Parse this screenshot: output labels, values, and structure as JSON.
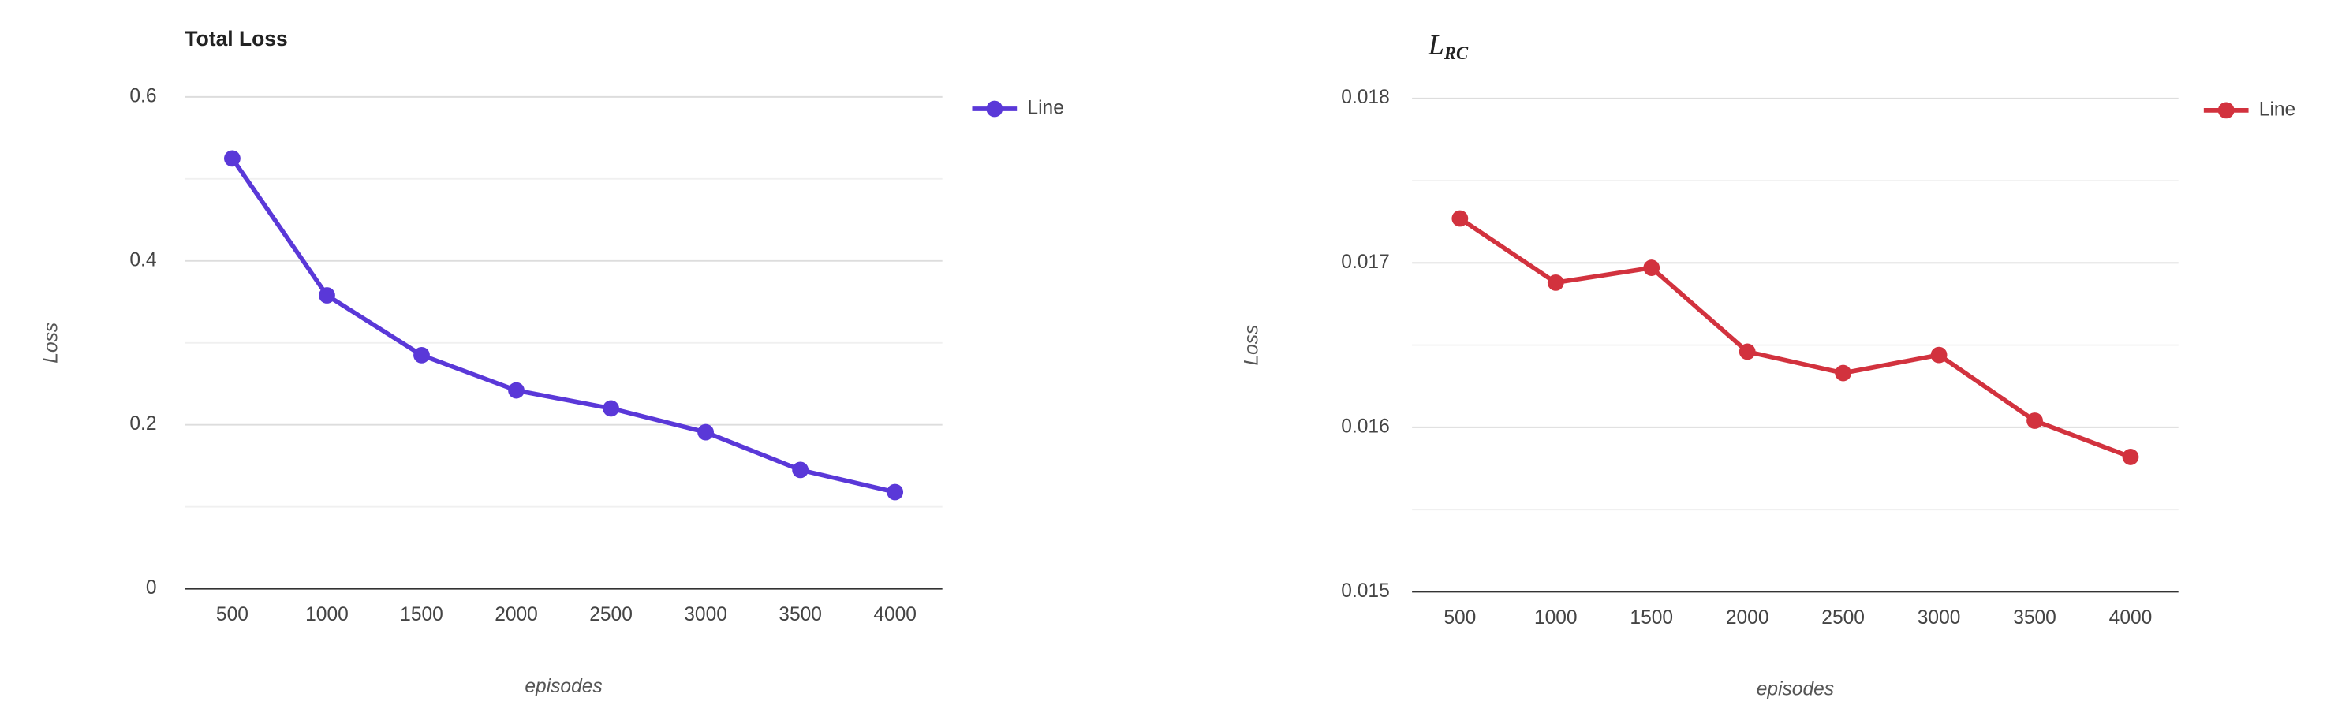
{
  "chart_data": [
    {
      "type": "line",
      "title": "Total Loss",
      "y_label": "Loss",
      "x_label": "episodes",
      "x": [
        500,
        1000,
        1500,
        2000,
        2500,
        3000,
        3500,
        4000
      ],
      "xlim": [
        250,
        4250
      ],
      "xticks": [
        500,
        1000,
        1500,
        2000,
        2500,
        3000,
        3500,
        4000
      ],
      "ylim": [
        0,
        0.6
      ],
      "yticks": [
        0,
        0.2,
        0.4,
        0.6
      ],
      "grid": true,
      "legend": "right",
      "series": [
        {
          "name": "Line",
          "color": "#5a38d8",
          "values": [
            0.525,
            0.358,
            0.285,
            0.242,
            0.22,
            0.191,
            0.145,
            0.118
          ]
        }
      ]
    },
    {
      "type": "line",
      "title": "L",
      "title_subscript": "RC",
      "y_label": "Loss",
      "x_label": "episodes",
      "x": [
        500,
        1000,
        1500,
        2000,
        2500,
        3000,
        3500,
        4000
      ],
      "xlim": [
        250,
        4250
      ],
      "xticks": [
        500,
        1000,
        1500,
        2000,
        2500,
        3000,
        3500,
        4000
      ],
      "ylim": [
        0.015,
        0.018
      ],
      "yticks": [
        0.015,
        0.016,
        0.017,
        0.018
      ],
      "grid": true,
      "legend": "right",
      "series": [
        {
          "name": "Line",
          "color": "#d2323e",
          "values": [
            0.01727,
            0.01688,
            0.01697,
            0.01646,
            0.01633,
            0.01644,
            0.01604,
            0.01582
          ]
        }
      ]
    }
  ]
}
